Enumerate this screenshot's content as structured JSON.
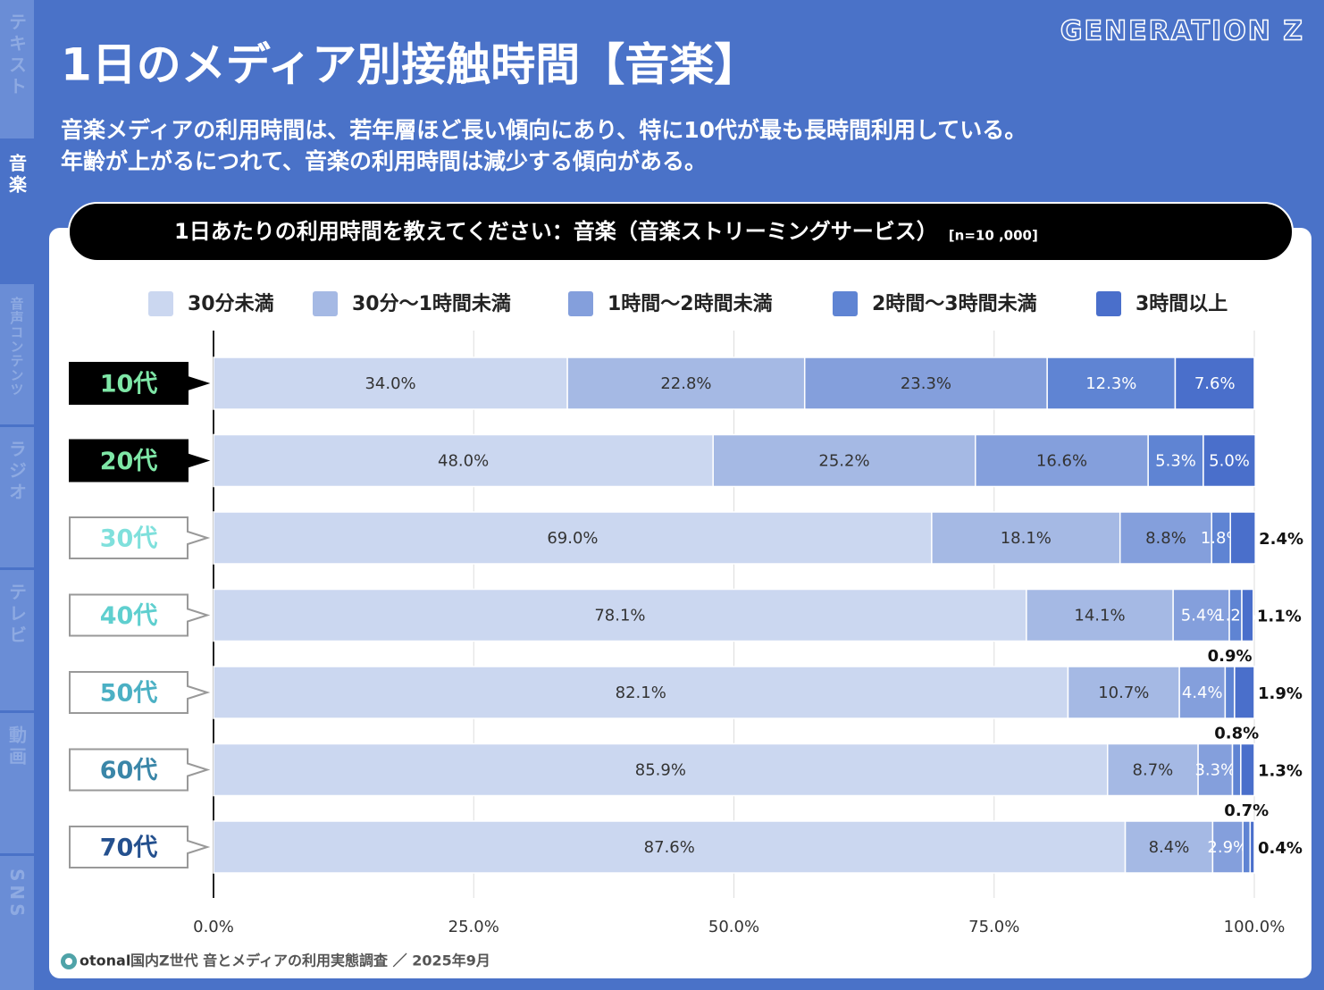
{
  "sidebar": [
    "テキスト",
    "音楽",
    "音声コンテンツ",
    "ラジオ",
    "テレビ",
    "動画",
    "SNS"
  ],
  "brand": "GENERATION Z",
  "title": "1日のメディア別接触時間【音楽】",
  "description": [
    "音楽メディアの利用時間は、若年層ほど長い傾向にあり、特に10代が最も長時間利用している。",
    "年齢が上がるにつれて、音楽の利用時間は減少する傾向がある。"
  ],
  "chart_data": {
    "type": "stacked-bar-horizontal",
    "title": "1日あたりの利用時間を教えてください：音楽（音楽ストリーミングサービス）",
    "subtitle": "[n=10 ,000]",
    "categories": [
      "10代",
      "20代",
      "30代",
      "40代",
      "50代",
      "60代",
      "70代"
    ],
    "series": [
      {
        "name": "30分未満",
        "color": "#cbd7f0",
        "values": [
          34.0,
          48.0,
          69.0,
          78.1,
          82.1,
          85.9,
          87.6
        ],
        "value_labels": [
          "34.0%",
          "48.0%",
          "69.0%",
          "78.1%",
          "82.1%",
          "85.9%",
          "87.6%"
        ]
      },
      {
        "name": "30分〜1時間未満",
        "color": "#a5b9e4",
        "values": [
          22.8,
          25.2,
          18.1,
          14.1,
          10.7,
          8.7,
          8.4
        ],
        "value_labels": [
          "22.8%",
          "25.2%",
          "18.1%",
          "14.1%",
          "10.7%",
          "8.7%",
          "8.4%"
        ]
      },
      {
        "name": "1時間〜2時間未満",
        "color": "#849fdc",
        "values": [
          23.3,
          16.6,
          8.8,
          5.4,
          4.4,
          3.3,
          2.9
        ],
        "value_labels": [
          "23.3%",
          "16.6%",
          "8.8%",
          "5.4%",
          "4.4%",
          "3.3%",
          "2.9%"
        ]
      },
      {
        "name": "2時間〜3時間未満",
        "color": "#5f84d3",
        "values": [
          12.3,
          5.3,
          1.8,
          1.2,
          0.9,
          0.8,
          0.7
        ],
        "value_labels": [
          "12.3%",
          "5.3%",
          "1.8%",
          "1.2%",
          "0.9%",
          "0.8%",
          "0.7%"
        ]
      },
      {
        "name": "3時間以上",
        "color": "#4a6fcb",
        "values": [
          7.6,
          5.0,
          2.4,
          1.1,
          1.9,
          1.3,
          0.4
        ],
        "value_labels": [
          "7.6%",
          "5.0%",
          "2.4%",
          "1.1%",
          "1.9%",
          "1.3%",
          "0.4%"
        ]
      }
    ],
    "xlim": [
      0,
      100
    ],
    "xticks": [
      {
        "value": 0,
        "label": "0.0%"
      },
      {
        "value": 25,
        "label": "25.0%"
      },
      {
        "value": 50,
        "label": "50.0%"
      },
      {
        "value": 75,
        "label": "75.0%"
      },
      {
        "value": 100,
        "label": "100.0%"
      }
    ],
    "grid": true
  },
  "footer": {
    "logo": "otonal",
    "source": "国内Z世代 音とメディアの利用実態調査 ／ 2025年9月"
  }
}
